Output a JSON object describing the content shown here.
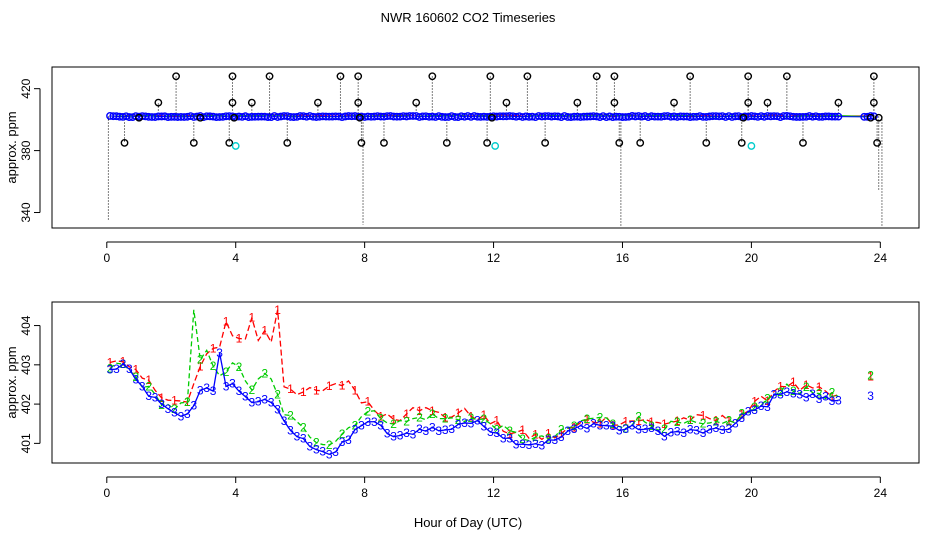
{
  "title": "NWR  160602  CO2 Timeseries",
  "xlabel": "Hour of Day (UTC)",
  "chart_data": [
    {
      "type": "scatter",
      "ylabel": "approx. ppm",
      "xlim": [
        -1.7,
        25.2
      ],
      "ylim": [
        330,
        434
      ],
      "xticks": [
        0,
        4,
        8,
        12,
        16,
        20,
        24
      ],
      "yticks": [
        340,
        380,
        420
      ],
      "base_value": 402,
      "series": [
        {
          "values": [],
          "color": "#ff0000"
        },
        {
          "values": [],
          "color": "#00cc00"
        },
        {
          "values": [],
          "color": "#0000ff"
        }
      ],
      "high_outliers": [
        {
          "x": 1.6,
          "y": 411
        },
        {
          "x": 2.15,
          "y": 428
        },
        {
          "x": 3.9,
          "y": 428
        },
        {
          "x": 3.9,
          "y": 411
        },
        {
          "x": 4.5,
          "y": 411
        },
        {
          "x": 5.05,
          "y": 428
        },
        {
          "x": 6.55,
          "y": 411
        },
        {
          "x": 7.25,
          "y": 428
        },
        {
          "x": 7.8,
          "y": 428
        },
        {
          "x": 7.8,
          "y": 411
        },
        {
          "x": 9.6,
          "y": 411
        },
        {
          "x": 10.1,
          "y": 428
        },
        {
          "x": 11.9,
          "y": 428
        },
        {
          "x": 12.4,
          "y": 411
        },
        {
          "x": 13.05,
          "y": 428
        },
        {
          "x": 14.6,
          "y": 411
        },
        {
          "x": 15.2,
          "y": 428
        },
        {
          "x": 15.75,
          "y": 428
        },
        {
          "x": 15.75,
          "y": 411
        },
        {
          "x": 17.6,
          "y": 411
        },
        {
          "x": 18.1,
          "y": 428
        },
        {
          "x": 19.9,
          "y": 428
        },
        {
          "x": 19.9,
          "y": 411
        },
        {
          "x": 20.5,
          "y": 411
        },
        {
          "x": 21.1,
          "y": 428
        },
        {
          "x": 22.7,
          "y": 411
        },
        {
          "x": 23.8,
          "y": 428
        },
        {
          "x": 23.8,
          "y": 411
        }
      ],
      "low_outliers": [
        {
          "x": 0.55,
          "y": 385
        },
        {
          "x": 2.7,
          "y": 385
        },
        {
          "x": 3.8,
          "y": 385
        },
        {
          "x": 5.6,
          "y": 385
        },
        {
          "x": 7.9,
          "y": 385
        },
        {
          "x": 8.6,
          "y": 385
        },
        {
          "x": 10.55,
          "y": 385
        },
        {
          "x": 11.8,
          "y": 385
        },
        {
          "x": 13.6,
          "y": 385
        },
        {
          "x": 15.9,
          "y": 385
        },
        {
          "x": 16.55,
          "y": 385
        },
        {
          "x": 18.6,
          "y": 385
        },
        {
          "x": 19.7,
          "y": 385
        },
        {
          "x": 21.6,
          "y": 385
        },
        {
          "x": 23.9,
          "y": 385
        }
      ],
      "cyan_points": [
        {
          "x": 4.0,
          "y": 383
        },
        {
          "x": 12.05,
          "y": 383
        },
        {
          "x": 20.0,
          "y": 383
        }
      ],
      "gap": [
        22.8,
        23.5
      ]
    },
    {
      "type": "line",
      "ylabel": "approx. ppm",
      "xlim": [
        -1.7,
        25.2
      ],
      "ylim": [
        400.5,
        404.6
      ],
      "xticks": [
        0,
        4,
        8,
        12,
        16,
        20,
        24
      ],
      "yticks": [
        401,
        402,
        403,
        404
      ],
      "series": [
        {
          "name": "1",
          "color": "#ff0000",
          "values": []
        },
        {
          "name": "2",
          "color": "#00cc00",
          "values": []
        },
        {
          "name": "3",
          "color": "#0000ff",
          "values": []
        }
      ],
      "anchors": {
        "x": [
          0.1,
          0.5,
          1.0,
          1.5,
          2.0,
          2.5,
          3.0,
          3.5,
          4.0,
          4.5,
          5.0,
          5.5,
          6.0,
          6.5,
          7.0,
          7.5,
          8.0,
          8.5,
          9.0,
          9.5,
          10.0,
          10.5,
          11.0,
          11.5,
          12.0,
          12.5,
          13.0,
          13.5,
          14.0,
          14.5,
          15.0,
          15.5,
          16.0,
          16.5,
          17.0,
          17.5,
          18.0,
          18.5,
          19.0,
          19.5,
          20.0,
          20.5,
          21.0,
          21.5,
          22.0,
          22.5,
          22.7,
          23.5,
          23.7
        ],
        "s3": [
          402.85,
          403.0,
          402.5,
          402.1,
          401.75,
          401.7,
          402.5,
          402.3,
          402.5,
          402.0,
          402.2,
          401.5,
          401.1,
          400.9,
          400.7,
          401.1,
          401.6,
          401.4,
          401.1,
          401.3,
          401.4,
          401.3,
          401.55,
          401.5,
          401.35,
          401.1,
          401.0,
          401.0,
          401.1,
          401.35,
          401.5,
          401.45,
          401.35,
          401.4,
          401.3,
          401.25,
          401.3,
          401.3,
          401.3,
          401.5,
          401.8,
          402.0,
          402.4,
          402.2,
          402.2,
          402.1,
          402.1,
          402.2,
          402.3
        ],
        "s1": [
          403.1,
          403.0,
          402.7,
          402.4,
          402.1,
          402.0,
          403.2,
          403.4,
          403.8,
          403.5,
          403.9,
          402.5,
          402.3,
          402.3,
          402.4,
          402.6,
          402.0,
          401.8,
          401.6,
          402.0,
          401.8,
          401.7,
          401.8,
          401.7,
          401.5,
          401.3,
          401.2,
          401.15,
          401.2,
          401.4,
          401.6,
          401.6,
          401.55,
          401.6,
          401.5,
          401.55,
          401.65,
          401.6,
          401.6,
          401.65,
          401.9,
          402.2,
          402.55,
          402.4,
          402.35,
          402.2,
          402.2,
          402.5,
          402.6
        ],
        "s2": [
          402.95,
          403.0,
          402.6,
          402.2,
          401.9,
          402.0,
          403.4,
          402.8,
          403.0,
          402.4,
          402.8,
          401.8,
          401.4,
          401.1,
          401.0,
          401.4,
          401.8,
          401.7,
          401.5,
          401.6,
          401.7,
          401.6,
          401.65,
          401.6,
          401.5,
          401.25,
          401.15,
          401.1,
          401.2,
          401.45,
          401.65,
          401.6,
          401.45,
          401.6,
          401.45,
          401.45,
          401.5,
          401.45,
          401.45,
          401.6,
          401.85,
          402.05,
          402.5,
          402.35,
          402.3,
          402.2,
          402.2,
          402.5,
          402.7
        ]
      }
    }
  ]
}
